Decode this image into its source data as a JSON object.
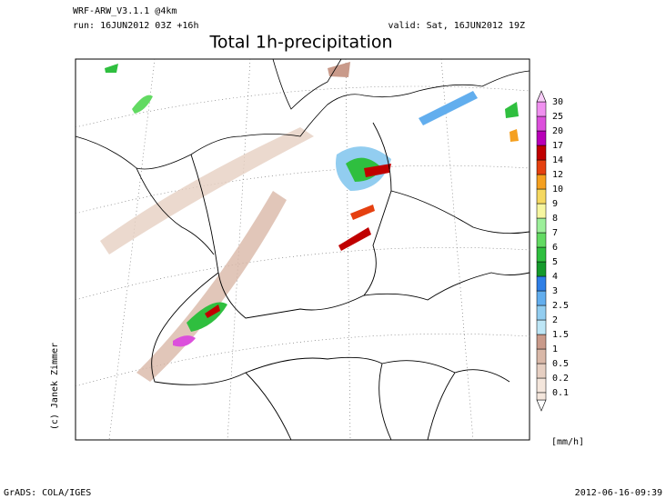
{
  "header": {
    "model": "WRF-ARW_V3.1.1 @4km",
    "run": "run: 16JUN2012 03Z +16h",
    "valid": "valid: Sat, 16JUN2012 19Z",
    "title": "Total 1h-precipitation"
  },
  "legend": {
    "unit": "[mm/h]",
    "levels": [
      {
        "label": "0.1",
        "color": "#f4e6dc"
      },
      {
        "label": "0.2",
        "color": "#e6cfc2"
      },
      {
        "label": "0.5",
        "color": "#d9b8a8"
      },
      {
        "label": "1",
        "color": "#c99a8a"
      },
      {
        "label": "1.5",
        "color": "#bde6f6"
      },
      {
        "label": "2",
        "color": "#92cdf0"
      },
      {
        "label": "2.5",
        "color": "#62aeee"
      },
      {
        "label": "3",
        "color": "#2f7fe6"
      },
      {
        "label": "4",
        "color": "#159a2c"
      },
      {
        "label": "5",
        "color": "#2fbf3f"
      },
      {
        "label": "6",
        "color": "#62da62"
      },
      {
        "label": "7",
        "color": "#9cef9a"
      },
      {
        "label": "8",
        "color": "#f6f6a0"
      },
      {
        "label": "9",
        "color": "#f5d860"
      },
      {
        "label": "10",
        "color": "#f5a020"
      },
      {
        "label": "12",
        "color": "#e54010"
      },
      {
        "label": "14",
        "color": "#c00000"
      },
      {
        "label": "17",
        "color": "#b800b8"
      },
      {
        "label": "20",
        "color": "#dc50dc"
      },
      {
        "label": "25",
        "color": "#f090f0"
      },
      {
        "label": "30",
        "color": "#f8cdf8"
      }
    ]
  },
  "credit": "(c) Janek Zimmer",
  "footer": {
    "left": "GrADS: COLA/IGES",
    "right": "2012-06-16-09:39"
  }
}
